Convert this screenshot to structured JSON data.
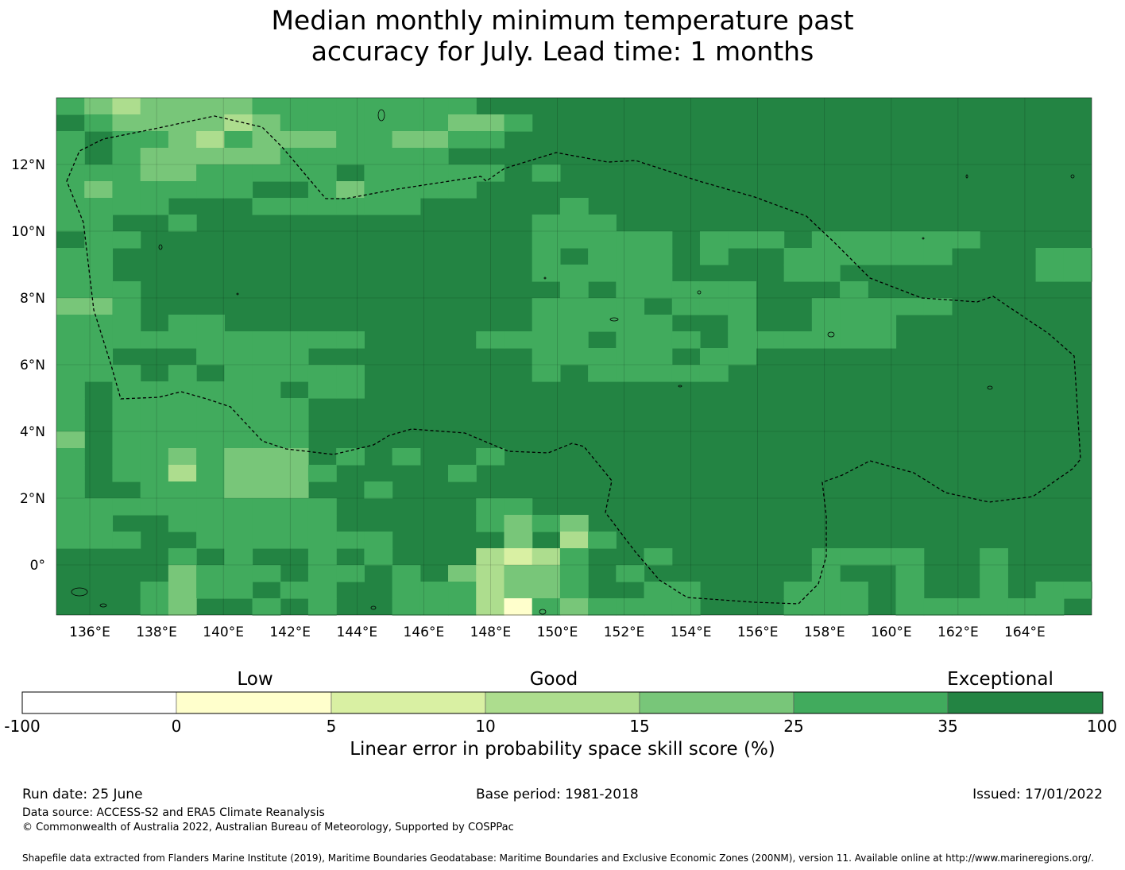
{
  "title_line1": "Median monthly minimum temperature past",
  "title_line2": "accuracy for July. Lead time: 1 months",
  "map": {
    "lon_range": [
      135,
      166
    ],
    "lat_range": [
      -1.5,
      14
    ],
    "lon_ticks": [
      "136°E",
      "138°E",
      "140°E",
      "142°E",
      "144°E",
      "146°E",
      "148°E",
      "150°E",
      "152°E",
      "154°E",
      "156°E",
      "158°E",
      "160°E",
      "162°E",
      "164°E"
    ],
    "lat_ticks": [
      "12°N",
      "10°N",
      "8°N",
      "6°N",
      "4°N",
      "2°N",
      "0°"
    ],
    "lon_tick_values": [
      136,
      138,
      140,
      142,
      144,
      146,
      148,
      150,
      152,
      154,
      156,
      158,
      160,
      162,
      164
    ],
    "lat_tick_values": [
      12,
      10,
      8,
      6,
      4,
      2,
      0
    ],
    "grid": true,
    "boundary": "dashed EEZ outline",
    "cell_colors": [
      "#ffffff",
      "#ffffcc",
      "#d9f0a3",
      "#addd8e",
      "#78c679",
      "#41ab5d",
      "#238443"
    ]
  },
  "colorbar": {
    "categories": [
      "Low",
      "Good",
      "Exceptional"
    ],
    "labels": [
      "-100",
      "0",
      "5",
      "10",
      "15",
      "25",
      "35",
      "100"
    ],
    "colors": [
      "#ffffff",
      "#ffffcc",
      "#d9f0a3",
      "#addd8e",
      "#78c679",
      "#41ab5d",
      "#238443"
    ],
    "title": "Linear error in probability space skill score (%)"
  },
  "footer": {
    "run_date": "Run date: 25 June",
    "base_period": "Base period: 1981-2018",
    "issued": "Issued: 17/01/2022",
    "data_source": "Data source: ACCESS-S2 and ERA5 Climate Reanalysis",
    "copyright": "© Commonwealth of Australia 2022, Australian Bureau of Meteorology, Supported by COSPPac",
    "shapefile": "Shapefile data extracted from Flanders Marine Institute (2019), Maritime Boundaries Geodatabase: Maritime Boundaries and Exclusive Economic Zones (200NM), version 11. Available online at http://www.marineregions.org/."
  }
}
